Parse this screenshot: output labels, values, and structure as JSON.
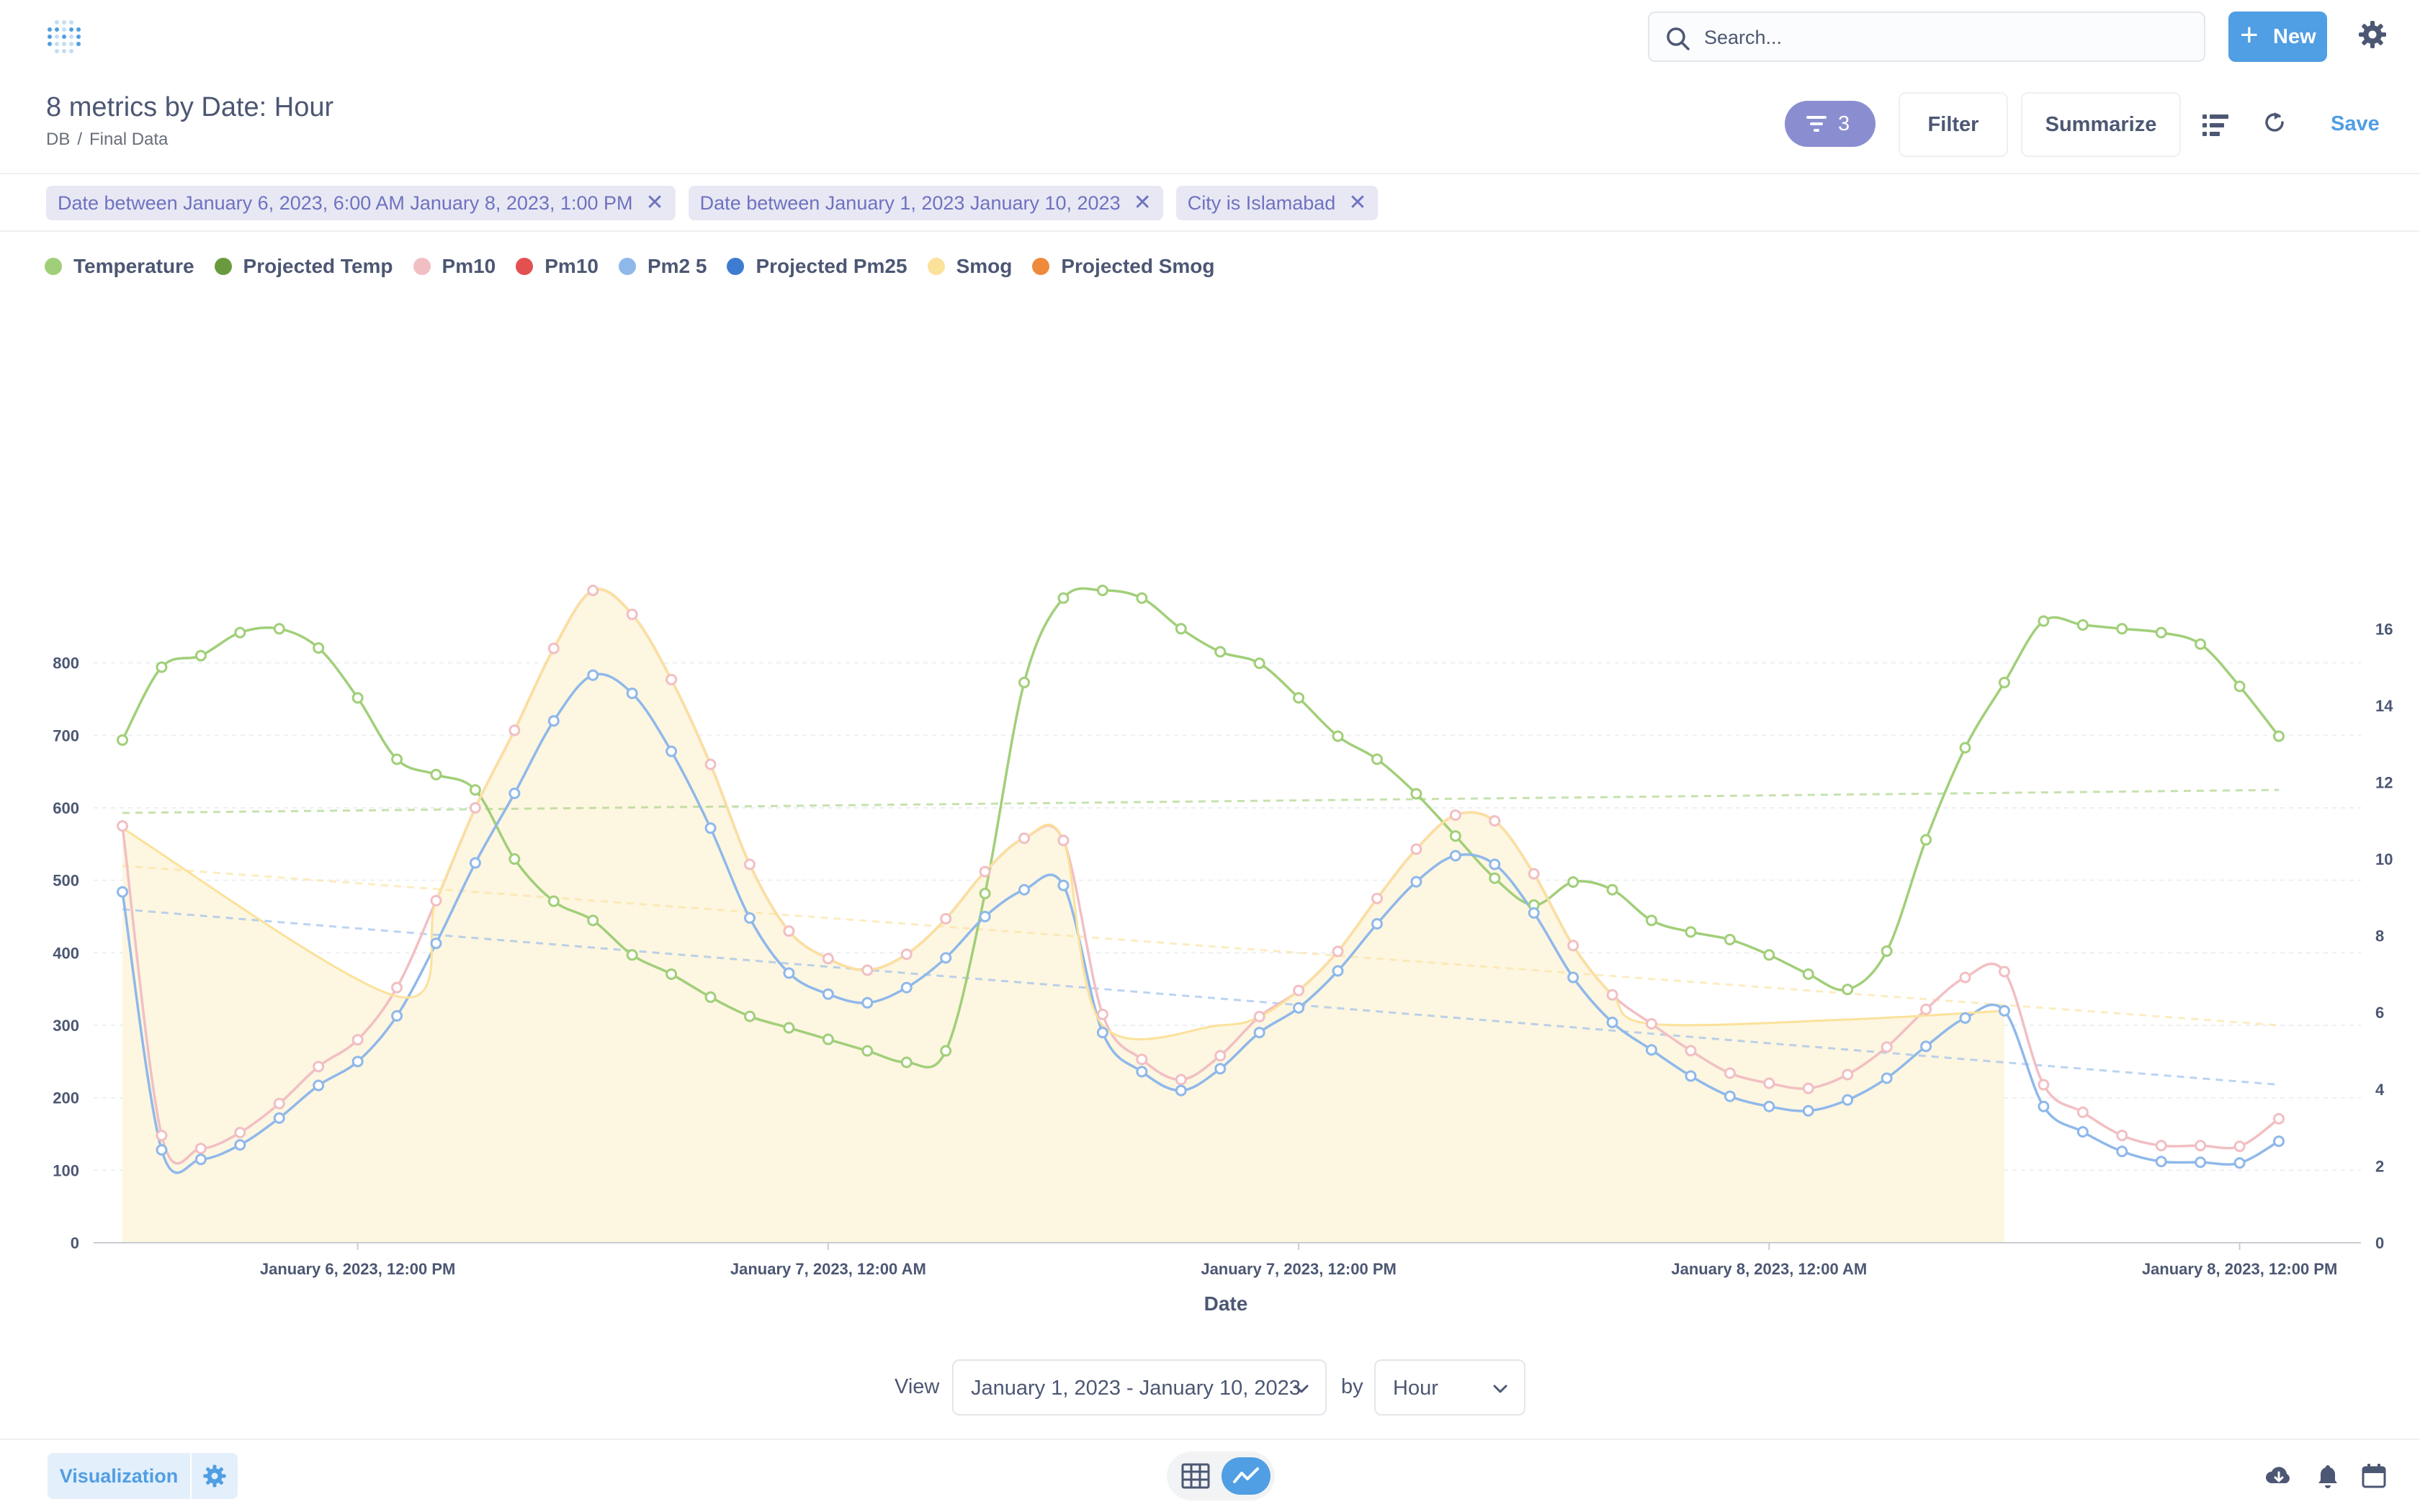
{
  "header": {
    "search_placeholder": "Search...",
    "new_label": "New"
  },
  "question": {
    "title": "8 metrics by Date: Hour",
    "breadcrumb": [
      "DB",
      "Final Data"
    ],
    "filter_count": "3",
    "filter_label": "Filter",
    "summarize_label": "Summarize",
    "save_label": "Save"
  },
  "filters": [
    "Date between January 6, 2023, 6:00 AM January 8, 2023, 1:00 PM",
    "Date between January 1, 2023 January 10, 2023",
    "City is Islamabad"
  ],
  "colors": {
    "temperature": "#a1cf79",
    "projected_temp": "#6b9a3e",
    "pm10": "#f1bfc3",
    "pm10_b": "#e35050",
    "pm25": "#8fb8ea",
    "projected_pm25": "#3e7cd1",
    "smog": "#fbe19a",
    "projected_smog": "#ef8a3d",
    "accent": "#509ee3"
  },
  "chart_data": {
    "type": "line",
    "xlabel": "Date",
    "x_ticks": [
      "January 6, 2023, 12:00 PM",
      "January 7, 2023, 12:00 AM",
      "January 7, 2023, 12:00 PM",
      "January 8, 2023, 12:00 AM",
      "January 8, 2023, 12:00 PM"
    ],
    "x_range_hours": [
      6,
      61
    ],
    "y_left": {
      "min": 0,
      "max": 900,
      "ticks": [
        0,
        100,
        200,
        300,
        400,
        500,
        600,
        700,
        800
      ]
    },
    "y_right": {
      "min": 0,
      "max": 17,
      "ticks": [
        0,
        2,
        4,
        6,
        8,
        10,
        12,
        14,
        16
      ]
    },
    "grid": true,
    "legend": "top-left",
    "series": [
      {
        "name": "Temperature",
        "axis": "right",
        "style": "line",
        "color_key": "temperature",
        "points": [
          [
            6,
            13.1
          ],
          [
            7,
            15
          ],
          [
            8,
            15.3
          ],
          [
            9,
            15.9
          ],
          [
            10,
            16
          ],
          [
            11,
            15.5
          ],
          [
            12,
            14.2
          ],
          [
            13,
            12.6
          ],
          [
            14,
            12.2
          ],
          [
            15,
            11.8
          ],
          [
            16,
            10
          ],
          [
            17,
            8.9
          ],
          [
            18,
            8.4
          ],
          [
            19,
            7.5
          ],
          [
            20,
            7
          ],
          [
            21,
            6.4
          ],
          [
            22,
            5.9
          ],
          [
            23,
            5.6
          ],
          [
            24,
            5.3
          ],
          [
            25,
            5
          ],
          [
            26,
            4.7
          ],
          [
            27,
            5
          ],
          [
            28,
            9.1
          ],
          [
            29,
            14.6
          ],
          [
            30,
            16.8
          ],
          [
            31,
            17
          ],
          [
            32,
            16.8
          ],
          [
            33,
            16
          ],
          [
            34,
            15.4
          ],
          [
            35,
            15.1
          ],
          [
            36,
            14.2
          ],
          [
            37,
            13.2
          ],
          [
            38,
            12.6
          ],
          [
            39,
            11.7
          ],
          [
            40,
            10.6
          ],
          [
            41,
            9.5
          ],
          [
            42,
            8.8
          ],
          [
            43,
            9.4
          ],
          [
            44,
            9.2
          ],
          [
            45,
            8.4
          ],
          [
            46,
            8.1
          ],
          [
            47,
            7.9
          ],
          [
            48,
            7.5
          ],
          [
            49,
            7
          ],
          [
            50,
            6.6
          ],
          [
            51,
            7.6
          ],
          [
            52,
            10.5
          ],
          [
            53,
            12.9
          ],
          [
            54,
            14.6
          ],
          [
            55,
            16.2
          ],
          [
            56,
            16.1
          ],
          [
            57,
            16
          ],
          [
            58,
            15.9
          ],
          [
            59,
            15.6
          ],
          [
            60,
            14.5
          ],
          [
            61,
            13.2
          ]
        ]
      },
      {
        "name": "Projected Temp",
        "axis": "right",
        "style": "trend",
        "color_key": "temperature",
        "points": [
          [
            6,
            11.2
          ],
          [
            61,
            11.8
          ]
        ]
      },
      {
        "name": "Pm10",
        "axis": "left",
        "style": "line",
        "color_key": "pm10",
        "points": [
          [
            6,
            575
          ],
          [
            7,
            148
          ],
          [
            8,
            130
          ],
          [
            9,
            152
          ],
          [
            10,
            192
          ],
          [
            11,
            243
          ],
          [
            12,
            280
          ],
          [
            13,
            352
          ],
          [
            14,
            472
          ],
          [
            15,
            600
          ],
          [
            16,
            707
          ],
          [
            17,
            820
          ],
          [
            18,
            900
          ],
          [
            19,
            867
          ],
          [
            20,
            777
          ],
          [
            21,
            660
          ],
          [
            22,
            522
          ],
          [
            23,
            430
          ],
          [
            24,
            392
          ],
          [
            25,
            376
          ],
          [
            26,
            398
          ],
          [
            27,
            447
          ],
          [
            28,
            512
          ],
          [
            29,
            558
          ],
          [
            30,
            555
          ],
          [
            31,
            315
          ],
          [
            32,
            253
          ],
          [
            33,
            225
          ],
          [
            34,
            258
          ],
          [
            35,
            312
          ],
          [
            36,
            348
          ],
          [
            37,
            402
          ],
          [
            38,
            475
          ],
          [
            39,
            543
          ],
          [
            40,
            590
          ],
          [
            41,
            582
          ],
          [
            42,
            509
          ],
          [
            43,
            410
          ],
          [
            44,
            342
          ],
          [
            45,
            302
          ],
          [
            46,
            265
          ],
          [
            47,
            234
          ],
          [
            48,
            220
          ],
          [
            49,
            213
          ],
          [
            50,
            232
          ],
          [
            51,
            270
          ],
          [
            52,
            322
          ],
          [
            53,
            366
          ],
          [
            54,
            374
          ],
          [
            55,
            218
          ],
          [
            56,
            180
          ],
          [
            57,
            148
          ],
          [
            58,
            134
          ],
          [
            59,
            134
          ],
          [
            60,
            133
          ],
          [
            61,
            171
          ]
        ]
      },
      {
        "name": "Pm2 5",
        "axis": "left",
        "style": "line",
        "color_key": "pm25",
        "points": [
          [
            6,
            484
          ],
          [
            7,
            128
          ],
          [
            8,
            115
          ],
          [
            9,
            135
          ],
          [
            10,
            172
          ],
          [
            11,
            217
          ],
          [
            12,
            250
          ],
          [
            13,
            313
          ],
          [
            14,
            413
          ],
          [
            15,
            524
          ],
          [
            16,
            620
          ],
          [
            17,
            720
          ],
          [
            18,
            783
          ],
          [
            19,
            758
          ],
          [
            20,
            678
          ],
          [
            21,
            572
          ],
          [
            22,
            448
          ],
          [
            23,
            372
          ],
          [
            24,
            343
          ],
          [
            25,
            331
          ],
          [
            26,
            352
          ],
          [
            27,
            393
          ],
          [
            28,
            450
          ],
          [
            29,
            487
          ],
          [
            30,
            493
          ],
          [
            31,
            290
          ],
          [
            32,
            236
          ],
          [
            33,
            210
          ],
          [
            34,
            240
          ],
          [
            35,
            290
          ],
          [
            36,
            324
          ],
          [
            37,
            375
          ],
          [
            38,
            440
          ],
          [
            39,
            498
          ],
          [
            40,
            534
          ],
          [
            41,
            522
          ],
          [
            42,
            455
          ],
          [
            43,
            366
          ],
          [
            44,
            304
          ],
          [
            45,
            266
          ],
          [
            46,
            230
          ],
          [
            47,
            202
          ],
          [
            48,
            188
          ],
          [
            49,
            182
          ],
          [
            50,
            197
          ],
          [
            51,
            227
          ],
          [
            52,
            271
          ],
          [
            53,
            310
          ],
          [
            54,
            320
          ],
          [
            55,
            188
          ],
          [
            56,
            153
          ],
          [
            57,
            126
          ],
          [
            58,
            112
          ],
          [
            59,
            111
          ],
          [
            60,
            110
          ],
          [
            61,
            140
          ]
        ]
      },
      {
        "name": "Projected Pm25",
        "axis": "left",
        "style": "trend",
        "color_key": "pm25",
        "points": [
          [
            6,
            460
          ],
          [
            61,
            218
          ]
        ]
      },
      {
        "name": "Smog",
        "axis": "left",
        "style": "area",
        "color_key": "smog",
        "points": [
          [
            6,
            572
          ],
          [
            13,
            340
          ],
          [
            14,
            472
          ],
          [
            15,
            600
          ],
          [
            16,
            707
          ],
          [
            17,
            820
          ],
          [
            18,
            900
          ],
          [
            19,
            867
          ],
          [
            20,
            777
          ],
          [
            21,
            660
          ],
          [
            22,
            522
          ],
          [
            23,
            430
          ],
          [
            24,
            392
          ],
          [
            25,
            376
          ],
          [
            26,
            398
          ],
          [
            27,
            447
          ],
          [
            28,
            512
          ],
          [
            29,
            558
          ],
          [
            30,
            555
          ],
          [
            31,
            300
          ],
          [
            34,
            300
          ],
          [
            35,
            312
          ],
          [
            36,
            348
          ],
          [
            37,
            402
          ],
          [
            38,
            475
          ],
          [
            39,
            543
          ],
          [
            40,
            590
          ],
          [
            41,
            582
          ],
          [
            42,
            509
          ],
          [
            43,
            410
          ],
          [
            44,
            342
          ],
          [
            45,
            302
          ],
          [
            50,
            308
          ],
          [
            54,
            320
          ],
          [
            54,
            0
          ]
        ]
      },
      {
        "name": "Projected Smog",
        "axis": "left",
        "style": "trend",
        "color_key": "smog",
        "points": [
          [
            6,
            520
          ],
          [
            61,
            300
          ]
        ]
      }
    ],
    "legend_entries": [
      "Temperature",
      "Projected Temp",
      "Pm10",
      "Pm10",
      "Pm2 5",
      "Projected Pm25",
      "Smog",
      "Projected Smog"
    ]
  },
  "controls": {
    "view_label": "View",
    "date_range": "January 1, 2023 - January 10, 2023",
    "by_label": "by",
    "granularity": "Hour"
  },
  "footer": {
    "visualization_label": "Visualization"
  }
}
